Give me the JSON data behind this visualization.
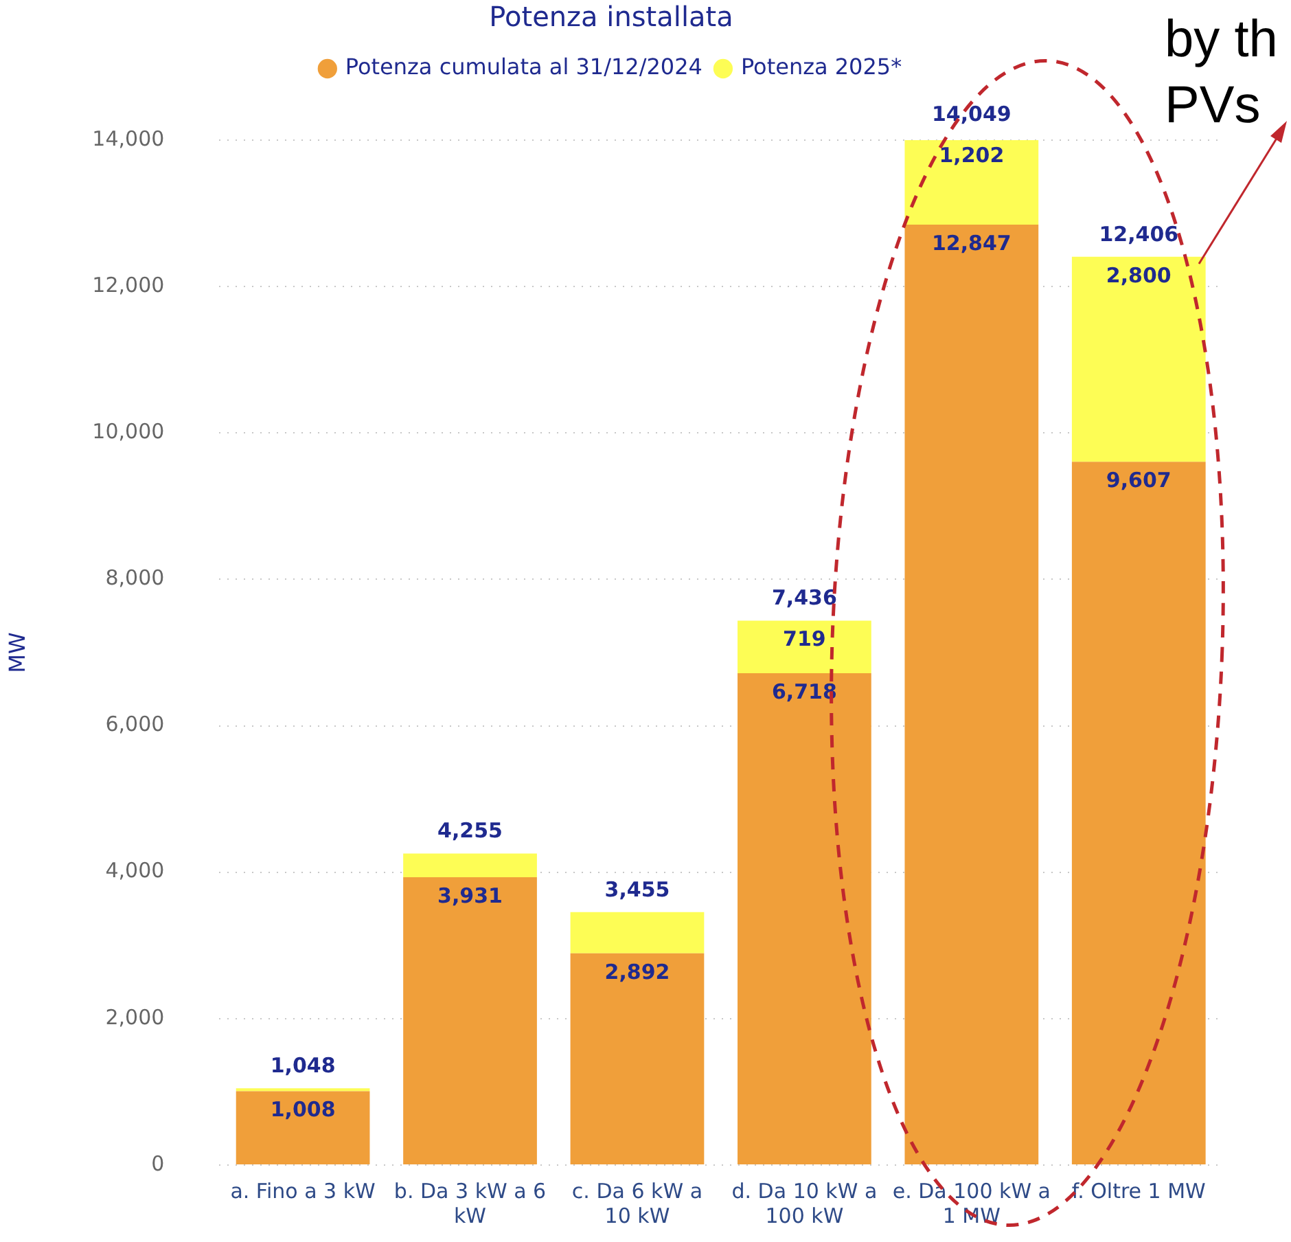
{
  "chart_data": {
    "type": "bar",
    "title": "Potenza installata",
    "ylabel": "MW",
    "stacked": true,
    "categories": [
      "a. Fino a 3 kW",
      "b. Da 3 kW a 6 kW",
      "c. Da 6 kW a 10 kW",
      "d. Da 10 kW a 100 kW",
      "e. Da 100 kW a 1 MW",
      "f. Oltre 1 MW"
    ],
    "series": [
      {
        "name": "Potenza cumulata al 31/12/2024",
        "color": "#f09f3a",
        "values": [
          1008,
          3931,
          2892,
          6718,
          12847,
          9607
        ],
        "value_labels": [
          "1,008",
          "3,931",
          "2,892",
          "6,718",
          "12,847",
          "9,607"
        ]
      },
      {
        "name": "Potenza 2025*",
        "color": "#fdfd55",
        "values": [
          40,
          324,
          563,
          719,
          1202,
          2800
        ],
        "value_labels": [
          null,
          null,
          null,
          "719",
          "1,202",
          "2,800"
        ]
      }
    ],
    "totals": [
      "1,048",
      "4,255",
      "3,455",
      "7,436",
      "14,049",
      "12,406"
    ],
    "ylim": [
      0,
      14000
    ],
    "yticks": [
      {
        "value": 0,
        "label": "0"
      },
      {
        "value": 2000,
        "label": "2,000"
      },
      {
        "value": 4000,
        "label": "4,000"
      },
      {
        "value": 6000,
        "label": "6,000"
      },
      {
        "value": 8000,
        "label": "8,000"
      },
      {
        "value": 10000,
        "label": "10,000"
      },
      {
        "value": 12000,
        "label": "12,000"
      },
      {
        "value": 14000,
        "label": "14,000"
      }
    ],
    "grid": "y",
    "legend": "top",
    "annotations": [
      "by th",
      "PVs"
    ]
  }
}
